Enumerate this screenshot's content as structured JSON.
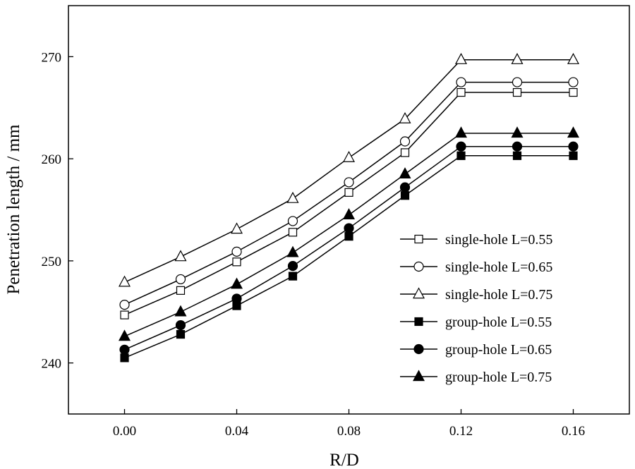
{
  "chart_data": {
    "type": "line",
    "title": "",
    "xlabel": "R/D",
    "ylabel": "Penetration length / mm",
    "xlim": [
      -0.02,
      0.18
    ],
    "ylim": [
      235,
      275
    ],
    "xticks": [
      0.0,
      0.04,
      0.08,
      0.12,
      0.16
    ],
    "xtick_labels": [
      "0.00",
      "0.04",
      "0.08",
      "0.12",
      "0.16"
    ],
    "yticks": [
      240,
      250,
      260,
      270
    ],
    "ytick_labels": [
      "240",
      "250",
      "260",
      "270"
    ],
    "grid": false,
    "legend_position": "right",
    "x": [
      0.0,
      0.02,
      0.04,
      0.06,
      0.08,
      0.1,
      0.12,
      0.14,
      0.16
    ],
    "series": [
      {
        "name": "single-hole L=0.55",
        "marker": "square",
        "filled": false,
        "values": [
          244.7,
          247.1,
          249.9,
          252.8,
          256.7,
          260.6,
          266.5,
          266.5,
          266.5
        ]
      },
      {
        "name": "single-hole L=0.65",
        "marker": "circle",
        "filled": false,
        "values": [
          245.7,
          248.2,
          250.9,
          253.9,
          257.7,
          261.7,
          267.5,
          267.5,
          267.5
        ]
      },
      {
        "name": "single-hole L=0.75",
        "marker": "triangle",
        "filled": false,
        "values": [
          247.9,
          250.4,
          253.1,
          256.1,
          260.1,
          263.9,
          269.7,
          269.7,
          269.7
        ]
      },
      {
        "name": "group-hole L=0.55",
        "marker": "square",
        "filled": true,
        "values": [
          240.5,
          242.8,
          245.6,
          248.5,
          252.4,
          256.4,
          260.3,
          260.3,
          260.3
        ]
      },
      {
        "name": "group-hole L=0.65",
        "marker": "circle",
        "filled": true,
        "values": [
          241.3,
          243.7,
          246.3,
          249.5,
          253.2,
          257.2,
          261.2,
          261.2,
          261.2
        ]
      },
      {
        "name": "group-hole L=0.75",
        "marker": "triangle",
        "filled": true,
        "values": [
          242.6,
          245.0,
          247.7,
          250.8,
          254.5,
          258.5,
          262.5,
          262.5,
          262.5
        ]
      }
    ],
    "colors": {
      "line": "#000000",
      "background": "#ffffff"
    }
  }
}
